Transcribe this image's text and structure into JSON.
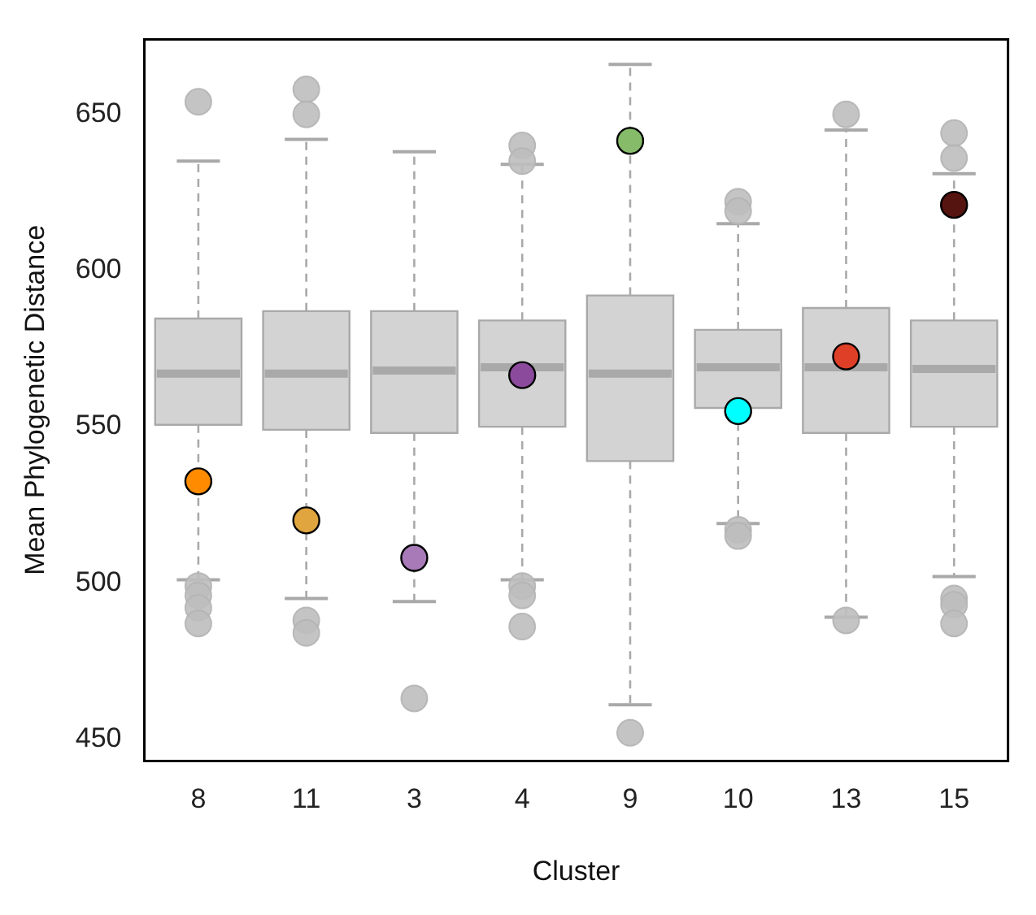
{
  "chart_data": {
    "type": "box",
    "xlabel": "Cluster",
    "ylabel": "Mean Phylogenetic Distance",
    "categories": [
      "8",
      "11",
      "3",
      "4",
      "9",
      "10",
      "13",
      "15"
    ],
    "color": "#d3d3d3",
    "ylim": [
      443,
      674
    ],
    "yticks": [
      450,
      500,
      550,
      600,
      650
    ],
    "grid": false,
    "legend": false,
    "boxes": [
      {
        "low": 501,
        "q1": 550.6,
        "median": 567,
        "q3": 584.6,
        "high": 635,
        "outliers": [
          654,
          499,
          496,
          492,
          487
        ]
      },
      {
        "low": 495,
        "q1": 549,
        "median": 567,
        "q3": 587,
        "high": 642,
        "outliers": [
          658,
          650,
          488,
          484
        ]
      },
      {
        "low": 494,
        "q1": 548,
        "median": 568,
        "q3": 587,
        "high": 638,
        "outliers": [
          463
        ]
      },
      {
        "low": 501,
        "q1": 550,
        "median": 569,
        "q3": 584,
        "high": 634,
        "outliers": [
          640,
          635,
          499,
          496,
          486
        ]
      },
      {
        "low": 461,
        "q1": 539,
        "median": 567,
        "q3": 592,
        "high": 666,
        "outliers": [
          452
        ]
      },
      {
        "low": 519,
        "q1": 556,
        "median": 569,
        "q3": 581,
        "high": 615,
        "outliers": [
          622,
          619,
          517,
          515
        ]
      },
      {
        "low": 489,
        "q1": 548,
        "median": 569,
        "q3": 588,
        "high": 645,
        "outliers": [
          650,
          488
        ]
      },
      {
        "low": 502,
        "q1": 550,
        "median": 568.5,
        "q3": 584,
        "high": 631,
        "outliers": [
          644,
          636,
          495,
          493,
          487
        ]
      }
    ],
    "series": [
      {
        "type": "scatter",
        "x": [
          "8",
          "11",
          "3",
          "4",
          "9",
          "10",
          "13",
          "15"
        ],
        "values": [
          532.5,
          520,
          508,
          566.5,
          641.5,
          555,
          572.5,
          621
        ],
        "colors": [
          "#ff8c00",
          "#e0a53f",
          "#a87bb8",
          "#8b4a9c",
          "#86bb6a",
          "#00ffff",
          "#de3f26",
          "#561410"
        ]
      }
    ]
  }
}
